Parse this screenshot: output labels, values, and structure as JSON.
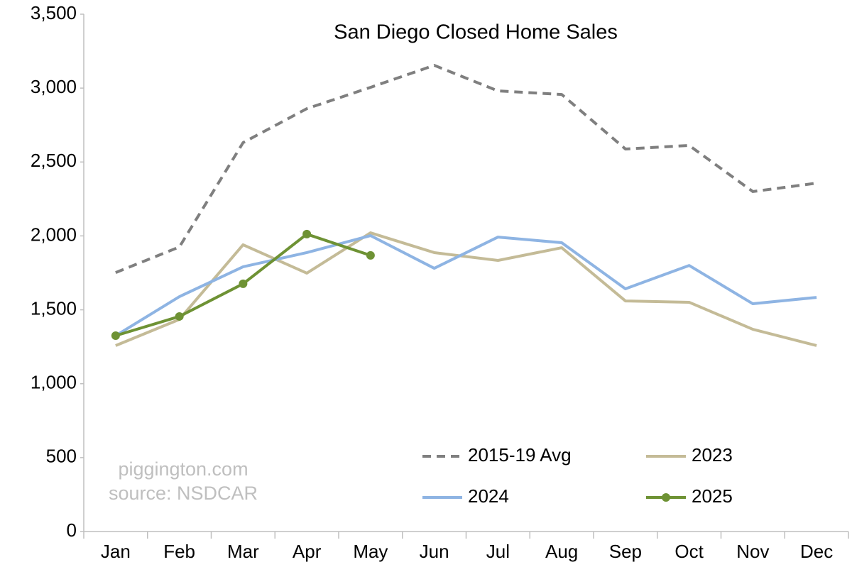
{
  "chart_data": {
    "type": "line",
    "title": "San Diego Closed Home Sales",
    "categories": [
      "Jan",
      "Feb",
      "Mar",
      "Apr",
      "May",
      "Jun",
      "Jul",
      "Aug",
      "Sep",
      "Oct",
      "Nov",
      "Dec"
    ],
    "series": [
      {
        "name": "2015-19 Avg",
        "color": "#7f7f7f",
        "dashed": true,
        "marker": false,
        "values": [
          1752,
          1925,
          2631,
          2861,
          3005,
          3154,
          2981,
          2957,
          2588,
          2612,
          2300,
          2357
        ]
      },
      {
        "name": "2023",
        "color": "#c4bb97",
        "dashed": false,
        "marker": false,
        "values": [
          1258,
          1435,
          1940,
          1748,
          2021,
          1887,
          1834,
          1920,
          1560,
          1551,
          1368,
          1258
        ]
      },
      {
        "name": "2024",
        "color": "#8eb4e3",
        "dashed": false,
        "marker": false,
        "values": [
          1325,
          1589,
          1791,
          1887,
          2002,
          1781,
          1992,
          1954,
          1642,
          1800,
          1541,
          1584
        ]
      },
      {
        "name": "2025",
        "color": "#6e9234",
        "dashed": false,
        "marker": true,
        "values": [
          1325,
          1455,
          1676,
          2012,
          1868,
          null,
          null,
          null,
          null,
          null,
          null,
          null
        ]
      }
    ],
    "ylim": [
      0,
      3500
    ],
    "yticks": [
      0,
      500,
      {
        "value": 1000,
        "label": "1,000"
      },
      {
        "value": 1500,
        "label": "1,500"
      },
      {
        "value": 2000,
        "label": "2,000"
      },
      {
        "value": 2500,
        "label": "2,500"
      },
      {
        "value": 3000,
        "label": "3,000"
      },
      {
        "value": 3500,
        "label": "3,500"
      }
    ],
    "grid": false,
    "legend": "lower right",
    "annotations": [
      "piggington.com",
      "source: NSDCAR"
    ]
  }
}
